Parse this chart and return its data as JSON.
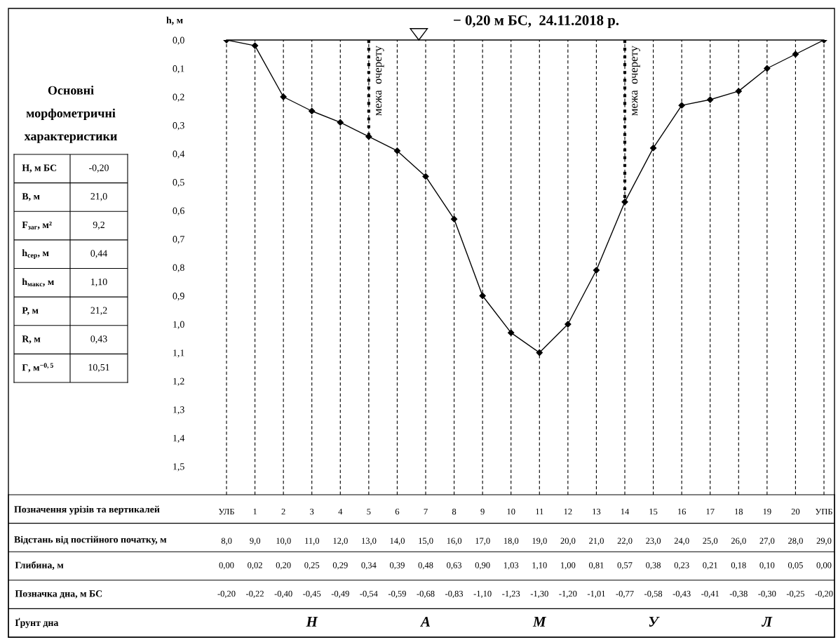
{
  "chart_data": [
    {
      "type": "line",
      "categories": [
        "УЛБ",
        "1",
        "2",
        "3",
        "4",
        "5",
        "6",
        "7",
        "8",
        "9",
        "10",
        "11",
        "12",
        "13",
        "14",
        "15",
        "16",
        "17",
        "18",
        "19",
        "20",
        "УПБ"
      ],
      "values": [
        0.0,
        0.02,
        0.2,
        0.25,
        0.29,
        0.34,
        0.39,
        0.48,
        0.63,
        0.9,
        1.03,
        1.1,
        1.0,
        0.81,
        0.57,
        0.38,
        0.23,
        0.21,
        0.18,
        0.1,
        0.05,
        0.0
      ],
      "color": "#000000",
      "marker": "diamond",
      "line_style": "solid",
      "ylabel": "h, м",
      "ylim": [
        1.6,
        0.0
      ],
      "yticks": [
        {
          "value": 0.0,
          "label": "0,0"
        },
        {
          "value": 0.1,
          "label": "0,1"
        },
        {
          "value": 0.2,
          "label": "0,2"
        },
        {
          "value": 0.3,
          "label": "0,3"
        },
        {
          "value": 0.4,
          "label": "0,4"
        },
        {
          "value": 0.5,
          "label": "0,5"
        },
        {
          "value": 0.6,
          "label": "0,6"
        },
        {
          "value": 0.7,
          "label": "0,7"
        },
        {
          "value": 0.8,
          "label": "0,8"
        },
        {
          "value": 0.9,
          "label": "0,9"
        },
        {
          "value": 1.0,
          "label": "1,0"
        },
        {
          "value": 1.1,
          "label": "1,1"
        },
        {
          "value": 1.2,
          "label": "1,2"
        },
        {
          "value": 1.3,
          "label": "1,3"
        },
        {
          "value": 1.4,
          "label": "1,4"
        },
        {
          "value": 1.5,
          "label": "1,5"
        }
      ],
      "xlabel": "Позначення урізів та вертикалей",
      "grid": "x",
      "x2label": "Відстань від постійного початку, м",
      "x2lim": [
        0.33,
        29.37
      ],
      "x2ticks": [
        {
          "value": 8,
          "label": "8,0"
        },
        {
          "value": 9,
          "label": "9,0"
        },
        {
          "value": 10,
          "label": "10,0"
        },
        {
          "value": 11,
          "label": "11,0"
        },
        {
          "value": 12,
          "label": "12,0"
        },
        {
          "value": 13,
          "label": "13,0"
        },
        {
          "value": 14,
          "label": "14,0"
        },
        {
          "value": 15,
          "label": "15,0"
        },
        {
          "value": 16,
          "label": "16,0"
        },
        {
          "value": 17,
          "label": "17,0"
        },
        {
          "value": 18,
          "label": "18,0"
        },
        {
          "value": 19,
          "label": "19,0"
        },
        {
          "value": 20,
          "label": "20,0"
        },
        {
          "value": 21,
          "label": "21,0"
        },
        {
          "value": 22,
          "label": "22,0"
        },
        {
          "value": 23,
          "label": "23,0"
        },
        {
          "value": 24,
          "label": "24,0"
        },
        {
          "value": 25,
          "label": "25,0"
        },
        {
          "value": 26,
          "label": "26,0"
        },
        {
          "value": 27,
          "label": "27,0"
        },
        {
          "value": 28,
          "label": "28,0"
        },
        {
          "value": 29,
          "label": "29,0"
        }
      ],
      "ref_lines": [
        {
          "axis": "y",
          "value": 0.0,
          "label": "− 0,20 м БС,  24.11.2018 р.",
          "color": "#000000",
          "line_style": "solid"
        },
        {
          "axis": "x",
          "value": "5",
          "label": "межа  очерету",
          "color": "#000000",
          "line_style": "dotted"
        },
        {
          "axis": "x",
          "value": "14",
          "label": "межа  очерету",
          "color": "#000000",
          "line_style": "dotted"
        }
      ]
    },
    {
      "type": "other",
      "title": "Основні морфометричні характеристики",
      "y_categories": [
        "H, м БС",
        "B, м",
        "F$_{заг}$, м²",
        "h$_{сер}$, м",
        "h$_{макс}$, м",
        "P, м",
        "R, м",
        "Г, м$^{−0,5}$"
      ],
      "cell_labels": [
        [
          "-0,20"
        ],
        [
          "21,0"
        ],
        [
          "9,2"
        ],
        [
          "0,44"
        ],
        [
          "1,10"
        ],
        [
          "21,2"
        ],
        [
          "0,43"
        ],
        [
          "10,51"
        ]
      ]
    },
    {
      "type": "other",
      "y_categories": [
        "Глибина, м",
        "Позначка дна, м БС",
        "Ґрунт дна"
      ],
      "cell_labels": [
        [
          "0,00",
          "0,02",
          "0,20",
          "0,25",
          "0,29",
          "0,34",
          "0,39",
          "0,48",
          "0,63",
          "0,90",
          "1,03",
          "1,10",
          "1,00",
          "0,81",
          "0,57",
          "0,38",
          "0,23",
          "0,21",
          "0,18",
          "0,10",
          "0,05",
          "0,00"
        ],
        [
          "-0,20",
          "-0,22",
          "-0,40",
          "-0,45",
          "-0,49",
          "-0,54",
          "-0,59",
          "-0,68",
          "-0,83",
          "-1,10",
          "-1,23",
          "-1,30",
          "-1,20",
          "-1,01",
          "-0,77",
          "-0,58",
          "-0,43",
          "-0,41",
          "-0,38",
          "-0,30",
          "-0,25",
          "-0,20"
        ],
        [
          null,
          null,
          null,
          "Н",
          null,
          null,
          null,
          "А",
          null,
          null,
          null,
          "М",
          null,
          null,
          null,
          "У",
          null,
          null,
          null,
          "Л",
          null,
          null
        ]
      ]
    }
  ]
}
